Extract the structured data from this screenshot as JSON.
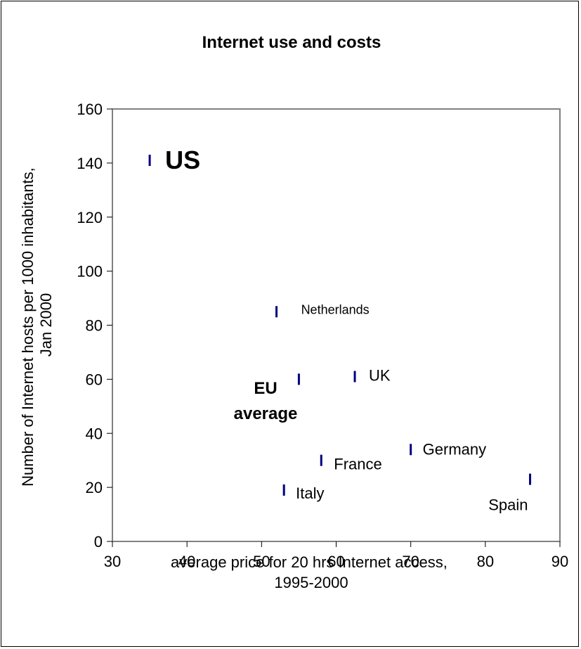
{
  "chart_data": {
    "type": "scatter",
    "title": "Internet use and costs",
    "xlabel_lines": [
      "average price for 20 hrs Internet access,",
      "1995-2000"
    ],
    "ylabel_lines": [
      "Number of Internet hosts per 1000 inhabitants,",
      "Jan 2000"
    ],
    "xlim": [
      30,
      90
    ],
    "ylim": [
      0,
      160
    ],
    "xticks": [
      30,
      40,
      50,
      60,
      70,
      80,
      90
    ],
    "yticks": [
      0,
      20,
      40,
      60,
      80,
      100,
      120,
      140,
      160
    ],
    "grid": false,
    "marker_color": "#000080",
    "points": [
      {
        "label": "US",
        "x": 35,
        "y": 141,
        "emphasis": "large-bold"
      },
      {
        "label": "Netherlands",
        "x": 52,
        "y": 85,
        "emphasis": "small"
      },
      {
        "label": "EU average",
        "x": 55,
        "y": 60,
        "emphasis": "bold"
      },
      {
        "label": "UK",
        "x": 62.5,
        "y": 61,
        "emphasis": "normal"
      },
      {
        "label": "France",
        "x": 58,
        "y": 30,
        "emphasis": "normal"
      },
      {
        "label": "Germany",
        "x": 70,
        "y": 34,
        "emphasis": "normal"
      },
      {
        "label": "Italy",
        "x": 53,
        "y": 19,
        "emphasis": "normal"
      },
      {
        "label": "Spain",
        "x": 86,
        "y": 23,
        "emphasis": "normal"
      }
    ]
  }
}
